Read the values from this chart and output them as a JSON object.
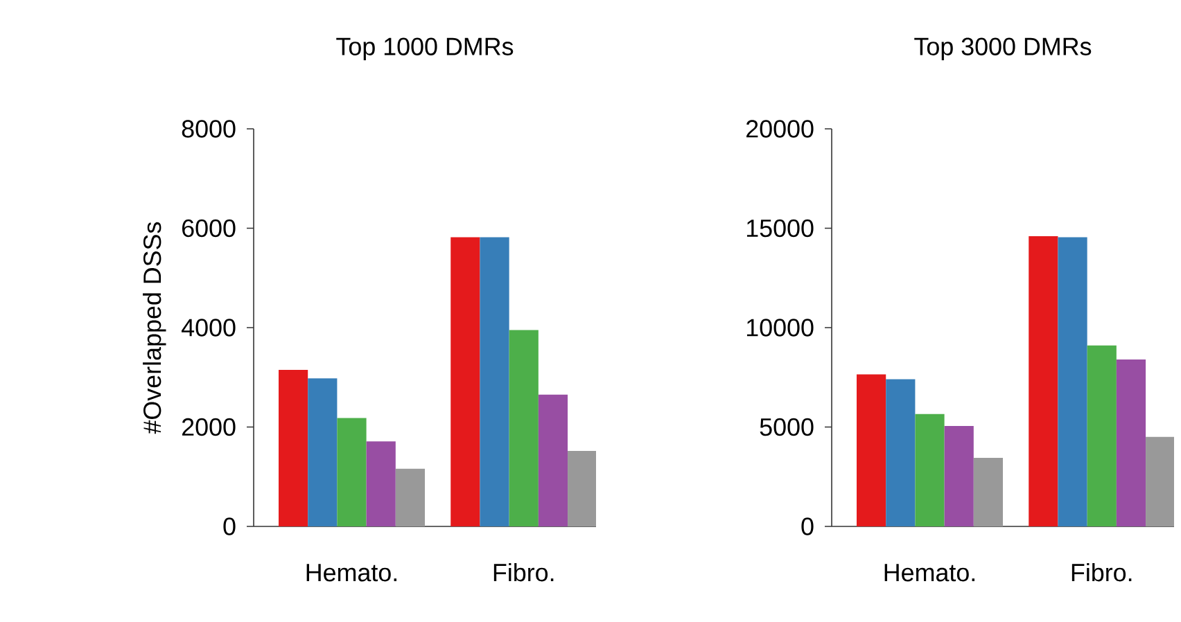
{
  "chart_data": [
    {
      "type": "bar",
      "title": "Top 1000 DMRs",
      "ylabel": "#Overlapped DSSs",
      "categories": [
        "Hemato.",
        "Fibro."
      ],
      "series": [
        {
          "color": "#e41a1c",
          "values": [
            3150,
            5820
          ]
        },
        {
          "color": "#377eb8",
          "values": [
            2980,
            5820
          ]
        },
        {
          "color": "#4daf4a",
          "values": [
            2180,
            3950
          ]
        },
        {
          "color": "#984ea3",
          "values": [
            1710,
            2650
          ]
        },
        {
          "color": "#999999",
          "values": [
            1160,
            1520
          ]
        }
      ],
      "ylim": [
        0,
        8000
      ],
      "yticks": [
        0,
        2000,
        4000,
        6000,
        8000
      ],
      "grid": false
    },
    {
      "type": "bar",
      "title": "Top 3000 DMRs",
      "categories": [
        "Hemato.",
        "Fibro."
      ],
      "series": [
        {
          "color": "#e41a1c",
          "values": [
            7650,
            14600
          ]
        },
        {
          "color": "#377eb8",
          "values": [
            7400,
            14550
          ]
        },
        {
          "color": "#4daf4a",
          "values": [
            5650,
            9100
          ]
        },
        {
          "color": "#984ea3",
          "values": [
            5050,
            8400
          ]
        },
        {
          "color": "#999999",
          "values": [
            3450,
            4500
          ]
        }
      ],
      "ylim": [
        0,
        20000
      ],
      "yticks": [
        0,
        5000,
        10000,
        15000,
        20000
      ],
      "grid": false
    }
  ]
}
